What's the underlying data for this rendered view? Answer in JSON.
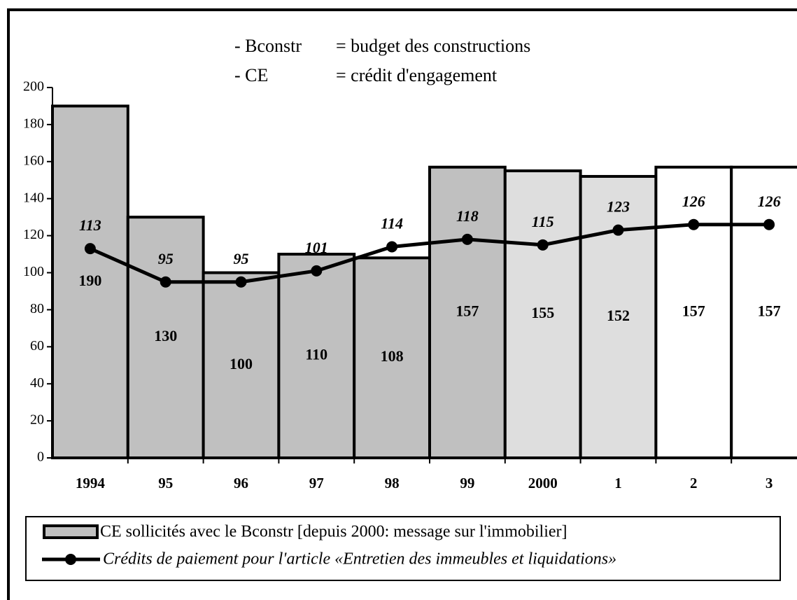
{
  "chart_data": {
    "type": "bar_line",
    "annotations": [
      "- Bconstr",
      "= budget des constructions",
      "- CE",
      "= crédit d'engagement"
    ],
    "categories": [
      "1994",
      "95",
      "96",
      "97",
      "98",
      "99",
      "2000",
      "1",
      "2",
      "3"
    ],
    "series": [
      {
        "name": "CE sollicités avec le Bconstr [depuis 2000: message sur l'immobilier]",
        "type": "bar",
        "color": "#c0c0c0",
        "colors": [
          "#c0c0c0",
          "#c0c0c0",
          "#c0c0c0",
          "#c0c0c0",
          "#c0c0c0",
          "#c0c0c0",
          "#dedede",
          "#dedede",
          "#ffffff",
          "#ffffff"
        ],
        "values": [
          190,
          130,
          100,
          110,
          108,
          157,
          155,
          152,
          157,
          157
        ]
      },
      {
        "name": "Crédits de paiement pour l'article «Entretien des immeubles et liquidations»",
        "type": "line",
        "color": "#000000",
        "values": [
          113,
          95,
          95,
          101,
          114,
          118,
          115,
          123,
          126,
          126
        ]
      }
    ],
    "ylim": [
      0,
      200
    ],
    "yticks": [
      0,
      20,
      40,
      60,
      80,
      100,
      120,
      140,
      160,
      180,
      200
    ]
  }
}
